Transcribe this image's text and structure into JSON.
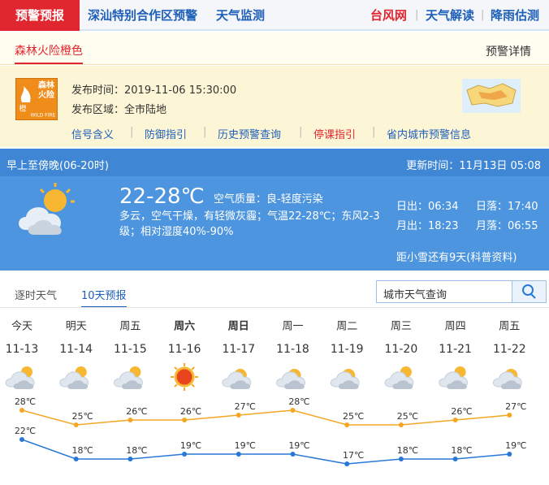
{
  "nav": {
    "tabs": [
      "预警预报",
      "深汕特别合作区预警",
      "天气监测"
    ],
    "links": [
      "台风网",
      "天气解读",
      "降雨估测"
    ]
  },
  "warning": {
    "title": "森林火险橙色",
    "detail_link": "预警详情",
    "icon_text": [
      "森林",
      "火险",
      "橙",
      "WILD FIRE"
    ],
    "publish_time_label": "发布时间：",
    "publish_time": "2019-11-06 15:30:00",
    "area_label": "发布区域：",
    "area": "全市陆地",
    "links": [
      "信号含义",
      "防御指引",
      "历史预警查询",
      "停课指引",
      "省内城市预警信息"
    ]
  },
  "today": {
    "period": "早上至傍晚(06-20时)",
    "update_label": "更新时间：",
    "update_time": "11月13日 05:08",
    "temperature": "22-28℃",
    "air_quality_label": "空气质量：",
    "air_quality": "良-轻度污染",
    "description": "多云，空气干燥，有轻微灰霾；气温22-28℃；东风2-3级；相对湿度40%-90%",
    "sunrise_label": "日出：",
    "sunrise": "06:34",
    "sunset_label": "日落：",
    "sunset": "17:40",
    "moonrise_label": "月出：",
    "moonrise": "18:23",
    "moonset_label": "月落：",
    "moonset": "06:55",
    "solar_term": "距小雪还有9天(科普资料)"
  },
  "forecast": {
    "tabs": [
      "逐时天气",
      "10天预报"
    ],
    "search_placeholder": "城市天气查询",
    "days": [
      "今天",
      "明天",
      "周五",
      "周六",
      "周日",
      "周一",
      "周二",
      "周三",
      "周四",
      "周五"
    ],
    "dates": [
      "11-13",
      "11-14",
      "11-15",
      "11-16",
      "11-17",
      "11-18",
      "11-19",
      "11-20",
      "11-21",
      "11-22"
    ],
    "high": {
      "color": "#f5a623",
      "values": [
        28,
        25,
        26,
        26,
        27,
        28,
        25,
        25,
        26,
        27
      ],
      "value_labels": [
        "28℃",
        "25℃",
        "26℃",
        "26℃",
        "27℃",
        "28℃",
        "25℃",
        "25℃",
        "26℃",
        "27℃"
      ]
    },
    "low": {
      "color": "#2a78d6",
      "values": [
        22,
        18,
        18,
        19,
        19,
        19,
        17,
        18,
        18,
        19
      ],
      "value_labels": [
        "22℃",
        "18℃",
        "18℃",
        "19℃",
        "19℃",
        "19℃",
        "17℃",
        "18℃",
        "18℃",
        "19℃"
      ]
    }
  }
}
